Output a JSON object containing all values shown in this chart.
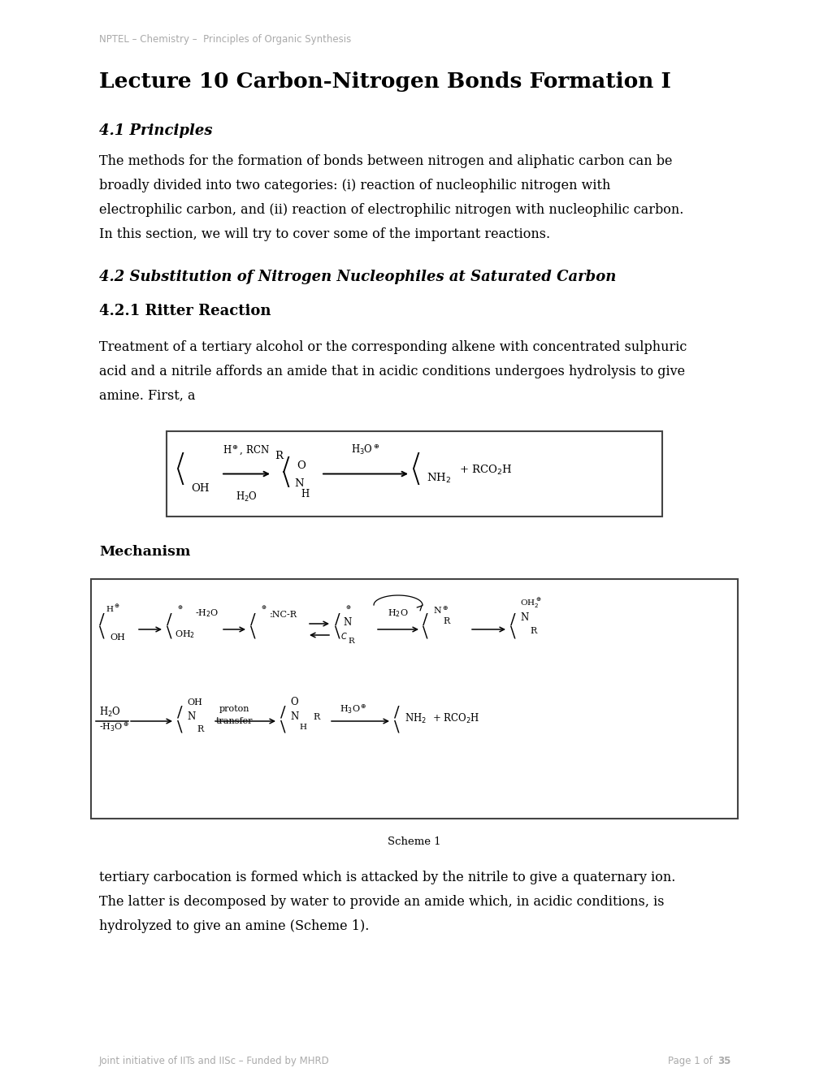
{
  "bg_color": "#ffffff",
  "header_text": "NPTEL – Chemistry –  Principles of Organic Synthesis",
  "header_color": "#aaaaaa",
  "title": "Lecture 10 Carbon-Nitrogen Bonds Formation I",
  "section1": "4.1 Principles",
  "body1_lines": [
    "The methods for the formation of bonds between nitrogen and aliphatic carbon can be",
    "broadly divided into two categories: (i) reaction of nucleophilic nitrogen with",
    "electrophilic carbon, and (ii) reaction of electrophilic nitrogen with nucleophilic carbon.",
    "In this section, we will try to cover some of the important reactions."
  ],
  "section2": "4.2 Substitution of Nitrogen Nucleophiles at Saturated Carbon",
  "section3": "4.2.1 Ritter Reaction",
  "body2_lines": [
    "Treatment of a tertiary alcohol or the corresponding alkene with concentrated sulphuric",
    "acid and a nitrile affords an amide that in acidic conditions undergoes hydrolysis to give",
    "amine. First, a"
  ],
  "mechanism_title": "Mechanism",
  "scheme_label": "Scheme 1",
  "body3_lines": [
    "tertiary carbocation is formed which is attacked by the nitrile to give a quaternary ion.",
    "The latter is decomposed by water to provide an amide which, in acidic conditions, is",
    "hydrolyzed to give an amine (Scheme 1)."
  ],
  "footer_left": "Joint initiative of IITs and IISc – Funded by MHRD",
  "footer_right_normal": "Page 1 of ",
  "footer_right_bold": "35",
  "footer_color": "#aaaaaa"
}
